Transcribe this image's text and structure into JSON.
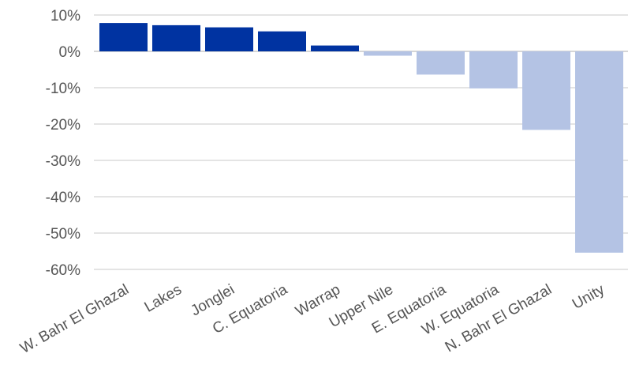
{
  "chart_data": {
    "type": "bar",
    "title": "",
    "xlabel": "",
    "ylabel": "",
    "categories": [
      "W. Bahr El Ghazal",
      "Lakes",
      "Jonglei",
      "C. Equatoria",
      "Warrap",
      "Upper Nile",
      "E. Equatoria",
      "W. Equatoria",
      "N. Bahr El Ghazal",
      "Unity"
    ],
    "values": [
      7.8,
      7.2,
      6.6,
      5.5,
      1.6,
      -1.2,
      -6.4,
      -10.2,
      -21.6,
      -55.4
    ],
    "ylim": [
      -60,
      10
    ],
    "yticks": [
      10,
      0,
      -10,
      -20,
      -30,
      -40,
      -50,
      -60
    ],
    "ytick_labels": [
      "10%",
      "0%",
      "-10%",
      "-20%",
      "-30%",
      "-40%",
      "-50%",
      "-60%"
    ],
    "grid": true,
    "legend": "none",
    "colors": {
      "positive": "#0033a1",
      "negative": "#b4c3e4"
    }
  }
}
